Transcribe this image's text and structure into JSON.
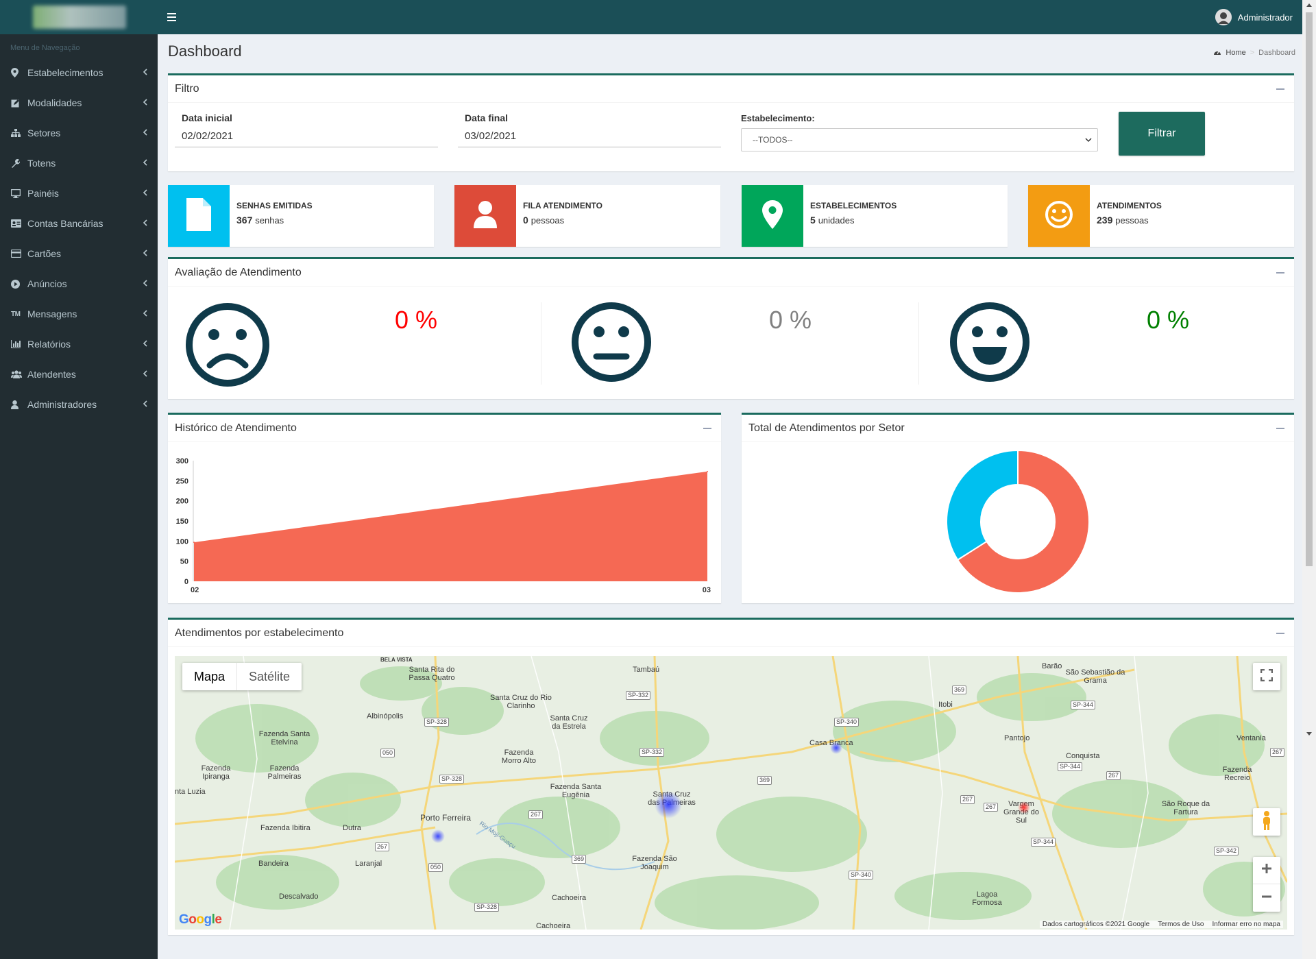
{
  "sidebar": {
    "nav_header": "Menu de Navegação",
    "items": [
      {
        "label": "Estabelecimentos",
        "icon": "map-marker-icon"
      },
      {
        "label": "Modalidades",
        "icon": "edit-icon"
      },
      {
        "label": "Setores",
        "icon": "sitemap-icon"
      },
      {
        "label": "Totens",
        "icon": "wrench-icon"
      },
      {
        "label": "Painéis",
        "icon": "desktop-icon"
      },
      {
        "label": "Contas Bancárias",
        "icon": "id-card-icon"
      },
      {
        "label": "Cartões",
        "icon": "credit-card-icon"
      },
      {
        "label": "Anúncios",
        "icon": "play-circle-icon"
      },
      {
        "label": "Mensagens",
        "icon": "trademark-icon"
      },
      {
        "label": "Relatórios",
        "icon": "bar-chart-icon"
      },
      {
        "label": "Atendentes",
        "icon": "users-icon"
      },
      {
        "label": "Administradores",
        "icon": "user-icon"
      }
    ]
  },
  "topbar": {
    "user_name": "Administrador"
  },
  "header": {
    "title": "Dashboard",
    "breadcrumb": {
      "home": "Home",
      "current": "Dashboard"
    }
  },
  "filter": {
    "title": "Filtro",
    "date_start_label": "Data inicial",
    "date_start_value": "02/02/2021",
    "date_end_label": "Data final",
    "date_end_value": "03/02/2021",
    "establishment_label": "Estabelecimento:",
    "establishment_value": "--TODOS--",
    "button_label": "Filtrar"
  },
  "info_boxes": [
    {
      "label": "SENHAS EMITIDAS",
      "value": "367",
      "unit": "senhas",
      "color": "#00c0ef",
      "icon": "file-icon"
    },
    {
      "label": "FILA ATENDIMENTO",
      "value": "0",
      "unit": "pessoas",
      "color": "#dd4b39",
      "icon": "user-icon"
    },
    {
      "label": "ESTABELECIMENTOS",
      "value": "5",
      "unit": "unidades",
      "color": "#00a65a",
      "icon": "map-marker-icon"
    },
    {
      "label": "ATENDIMENTOS",
      "value": "239",
      "unit": "pessoas",
      "color": "#f39c12",
      "icon": "smile-icon"
    }
  ],
  "evaluation": {
    "title": "Avaliação de Atendimento",
    "items": [
      {
        "icon": "sad-face-icon",
        "percent": "0 %",
        "color": "#ff0000"
      },
      {
        "icon": "neutral-face-icon",
        "percent": "0 %",
        "color": "#808080"
      },
      {
        "icon": "happy-face-icon",
        "percent": "0 %",
        "color": "#008000"
      }
    ]
  },
  "history": {
    "title": "Histórico de Atendimento"
  },
  "sector": {
    "title": "Total de Atendimentos por Setor"
  },
  "map": {
    "title": "Atendimentos por estabelecimento",
    "toggle_map": "Mapa",
    "toggle_satellite": "Satélite",
    "footer_data": "Dados cartográficos ©2021 Google",
    "footer_terms": "Termos de Uso",
    "footer_report": "Informar erro no mapa",
    "google": "Google",
    "places": [
      "BELA VISTA",
      "Santa Rita do Passa Quatro",
      "Tambaú",
      "Barão",
      "São Sebastião da Grama",
      "Santa Cruz do Rio Clarinho",
      "Santa Cruz da Estrela",
      "Itobi",
      "Albinópolis",
      "Fazenda Santa Etelvina",
      "Fazenda Morro Alto",
      "Casa Branca",
      "Pantojo",
      "Ventania",
      "Conquista",
      "Fazenda Ipiranga",
      "Fazenda Palmeiras",
      "nta Luzia",
      "Fazenda Santa Eugênia",
      "Santa Cruz das Palmeiras",
      "Fazenda Recreio",
      "Vargem Grande do Sul",
      "São Roque da Fartura",
      "Porto Ferreira",
      "Fazenda Ibitira",
      "Dutra",
      "Bandeira",
      "Laranjal",
      "Fazenda São Joaquim",
      "Lagoa Formosa",
      "Descalvado",
      "Cachoeira",
      "Rio Moji-Guaçu"
    ],
    "roads": [
      "SP-332",
      "SP-328",
      "050",
      "SP-328",
      "SP-340",
      "369",
      "369",
      "SP-344",
      "SP-344",
      "267",
      "267",
      "267",
      "267",
      "369",
      "SP-344",
      "SP-342",
      "SP-340",
      "050",
      "267",
      "SP-328",
      "SP-332",
      "267"
    ]
  },
  "chart_data": [
    {
      "type": "area",
      "x": [
        "02",
        "03"
      ],
      "series": [
        {
          "values": [
            97,
            273
          ]
        }
      ],
      "ylim": [
        0,
        300
      ],
      "yticks": [
        0,
        50,
        100,
        150,
        200,
        250,
        300
      ],
      "color": "#f56954"
    },
    {
      "type": "pie",
      "slices": [
        {
          "value": 66,
          "color": "#f56954"
        },
        {
          "value": 34,
          "color": "#00c0ef"
        }
      ]
    }
  ]
}
